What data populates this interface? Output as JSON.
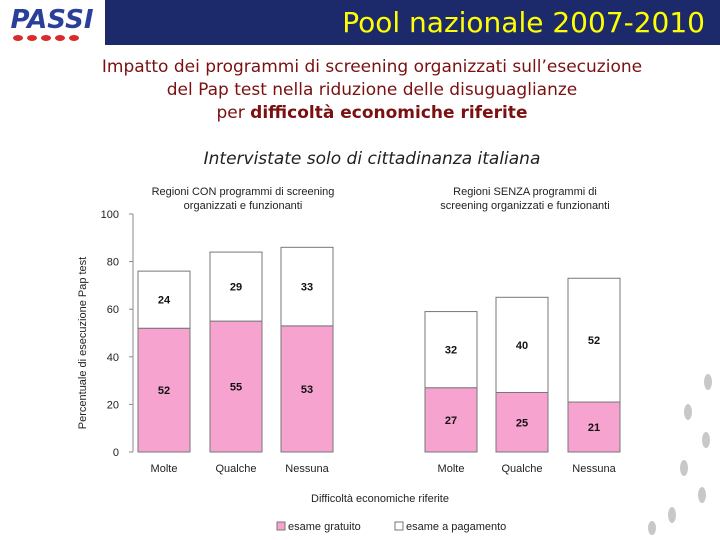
{
  "header": {
    "logo": "PASSI",
    "title": "Pool nazionale 2007-2010"
  },
  "subtitle": {
    "line1": "Impatto dei programmi di screening organizzati sull’esecuzione",
    "line2": "del Pap test nella riduzione delle disuguaglianze",
    "line3_prefix": "per",
    "line3_bold": "difficoltà economiche riferite"
  },
  "note": "Intervistate solo di cittadinanza italiana",
  "chart_data": {
    "type": "bar",
    "stacked": true,
    "ylabel": "Percentuale di esecuzione Pap test",
    "xlabel": "Difficoltà economiche riferite",
    "ylim": [
      0,
      100
    ],
    "yticks": [
      0,
      20,
      40,
      60,
      80,
      100
    ],
    "panels": [
      {
        "title": [
          "Regioni CON programmi di screening",
          "organizzati e funzionanti"
        ],
        "categories": [
          "Molte",
          "Qualche",
          "Nessuna"
        ],
        "series": [
          {
            "name": "esame gratuito",
            "color": "#f7a3d0",
            "values": [
              52,
              55,
              53
            ]
          },
          {
            "name": "esame a pagamento",
            "color": "#ffffff",
            "values": [
              24,
              29,
              33
            ]
          }
        ]
      },
      {
        "title": [
          "Regioni SENZA programmi di",
          "screening organizzati e funzionanti"
        ],
        "categories": [
          "Molte",
          "Qualche",
          "Nessuna"
        ],
        "series": [
          {
            "name": "esame gratuito",
            "color": "#f7a3d0",
            "values": [
              27,
              25,
              21
            ]
          },
          {
            "name": "esame a pagamento",
            "color": "#ffffff",
            "values": [
              32,
              40,
              52
            ]
          }
        ]
      }
    ]
  }
}
